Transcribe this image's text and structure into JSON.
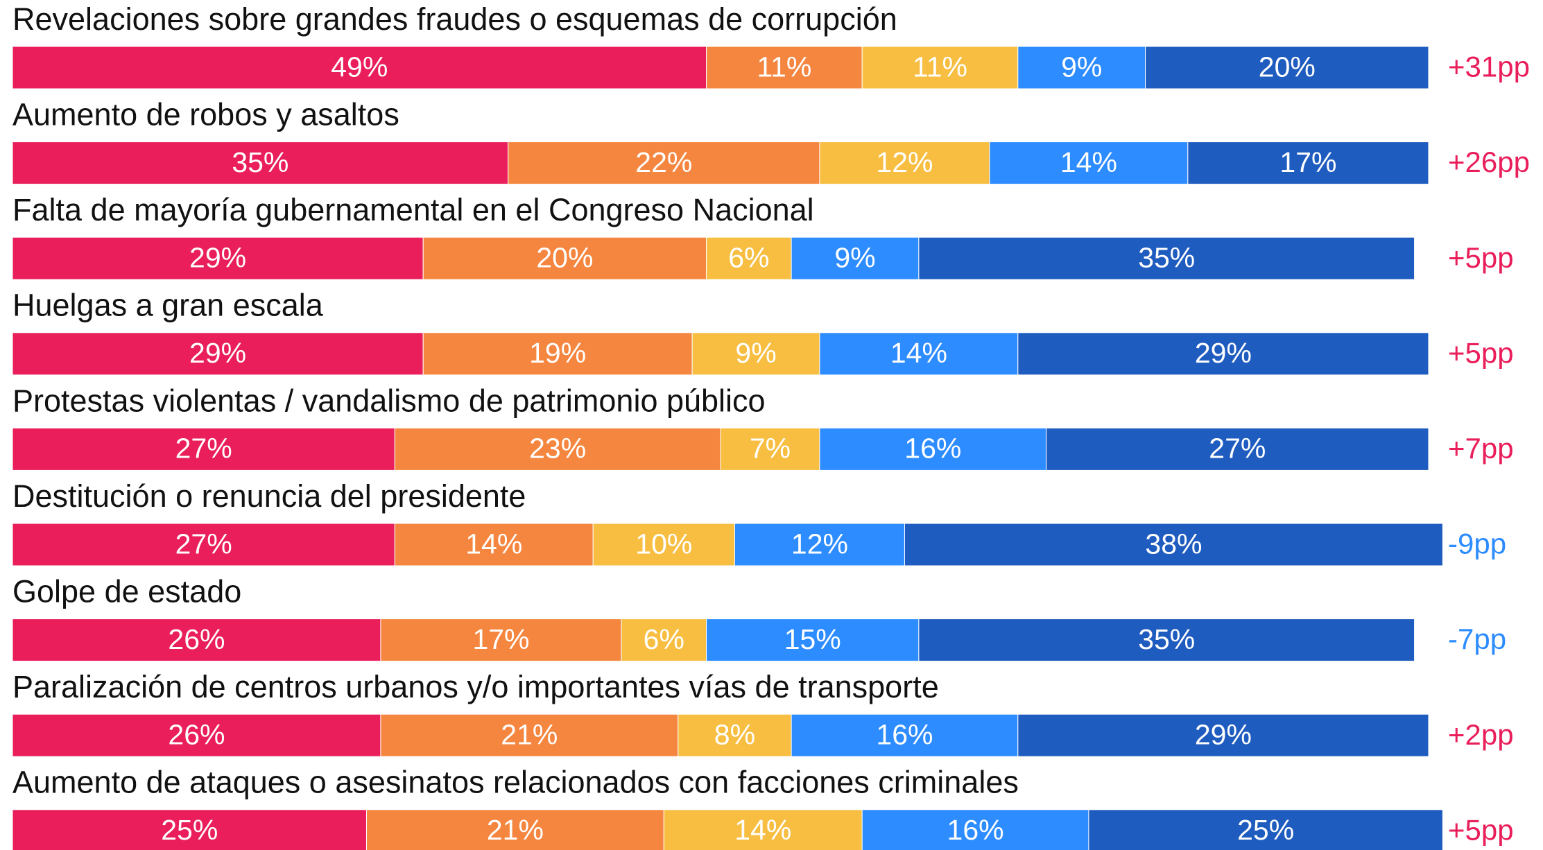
{
  "chart_data": {
    "type": "stacked_barh",
    "categories": [
      "Revelaciones sobre grandes fraudes o esquemas de corrupción",
      "Aumento de robos y asaltos",
      "Falta de mayoría gubernamental en el Congreso Nacional",
      "Huelgas a gran escala",
      "Protestas violentas / vandalismo de patrimonio público",
      "Destitución o renuncia del presidente",
      "Golpe de estado",
      "Paralización de centros urbanos y/o importantes vías de transporte",
      "Aumento de ataques o asesinatos relacionados con facciones criminales"
    ],
    "xlim": [
      0,
      100
    ],
    "series": [
      {
        "color": "#e91e5a",
        "values": [
          49,
          35,
          29,
          29,
          27,
          27,
          26,
          26,
          25
        ],
        "value_labels": [
          "49%",
          "35%",
          "29%",
          "29%",
          "27%",
          "27%",
          "26%",
          "26%",
          "25%"
        ]
      },
      {
        "color": "#f5863f",
        "values": [
          11,
          22,
          20,
          19,
          23,
          14,
          17,
          21,
          21
        ],
        "value_labels": [
          "11%",
          "22%",
          "20%",
          "19%",
          "23%",
          "14%",
          "17%",
          "21%",
          "21%"
        ]
      },
      {
        "color": "#f7be41",
        "values": [
          11,
          12,
          6,
          9,
          7,
          10,
          6,
          8,
          14
        ],
        "value_labels": [
          "11%",
          "12%",
          "6%",
          "9%",
          "7%",
          "10%",
          "6%",
          "8%",
          "14%"
        ]
      },
      {
        "color": "#2d8cff",
        "values": [
          9,
          14,
          9,
          14,
          16,
          12,
          15,
          16,
          16
        ],
        "value_labels": [
          "9%",
          "14%",
          "9%",
          "14%",
          "16%",
          "12%",
          "15%",
          "16%",
          "16%"
        ]
      },
      {
        "color": "#1f5cbf",
        "values": [
          20,
          17,
          35,
          29,
          27,
          38,
          35,
          29,
          25
        ],
        "value_labels": [
          "20%",
          "17%",
          "35%",
          "29%",
          "27%",
          "38%",
          "35%",
          "29%",
          "25%"
        ]
      }
    ],
    "annotations": [
      {
        "text": "+31pp",
        "color": "#e91e5a"
      },
      {
        "text": "+26pp",
        "color": "#e91e5a"
      },
      {
        "text": "+5pp",
        "color": "#e91e5a"
      },
      {
        "text": "+5pp",
        "color": "#e91e5a"
      },
      {
        "text": "+7pp",
        "color": "#e91e5a"
      },
      {
        "text": "-9pp",
        "color": "#2d8cff"
      },
      {
        "text": "-7pp",
        "color": "#2d8cff"
      },
      {
        "text": "+2pp",
        "color": "#e91e5a"
      },
      {
        "text": "+5pp",
        "color": "#e91e5a"
      }
    ]
  }
}
